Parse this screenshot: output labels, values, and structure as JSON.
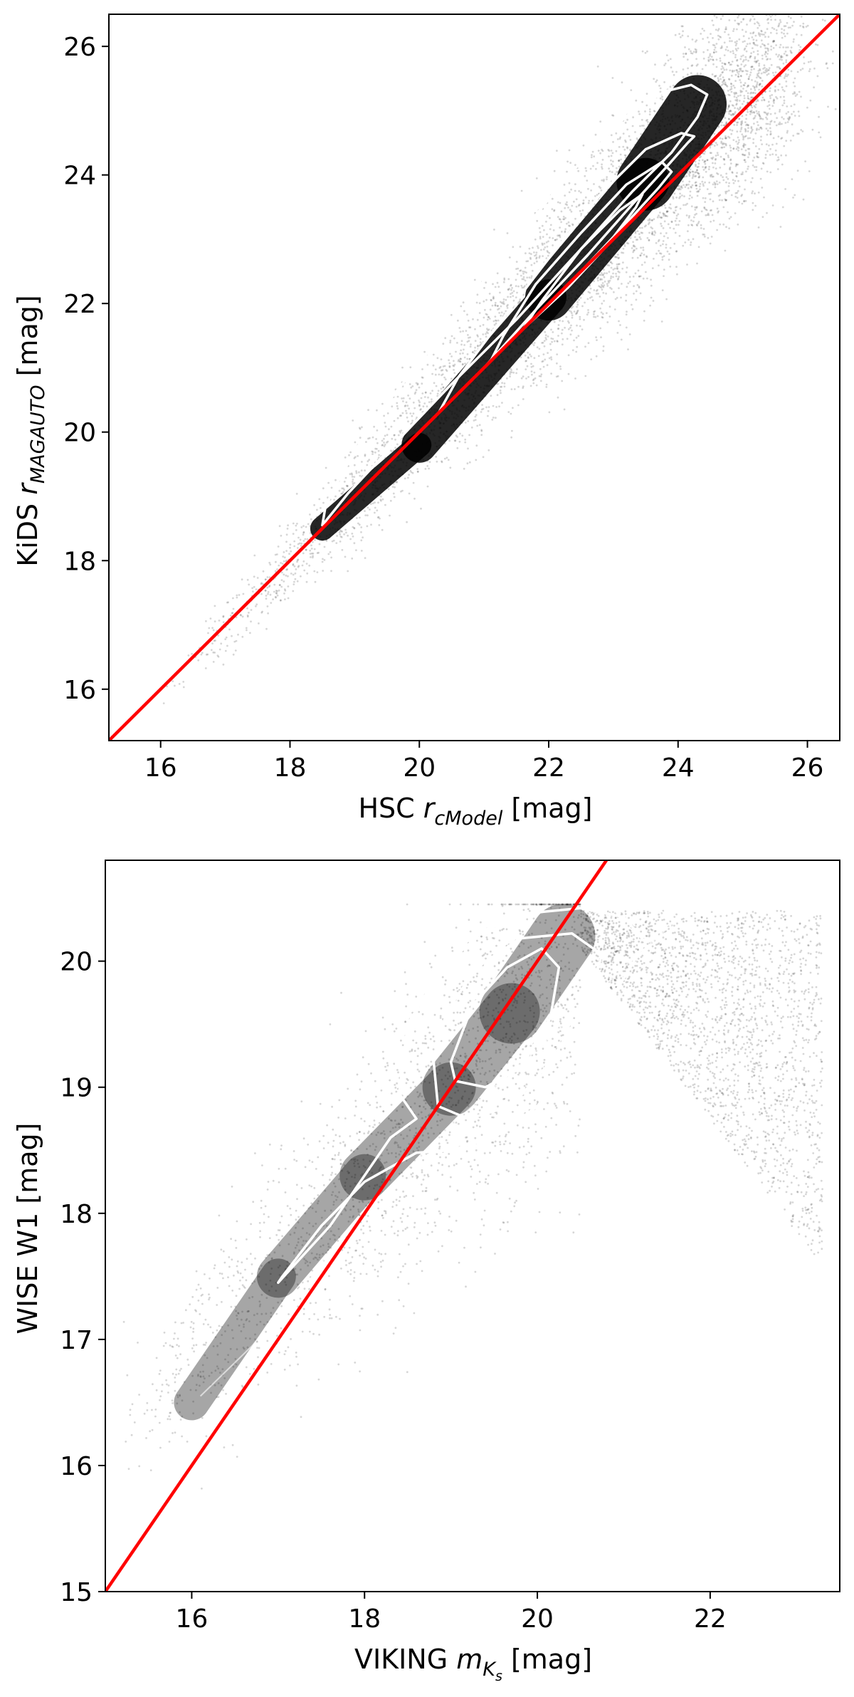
{
  "chart_data": [
    {
      "type": "scatter",
      "xlabel_parts": [
        "HSC ",
        "r",
        "cModel",
        " [mag]"
      ],
      "ylabel_parts": [
        "KiDS ",
        "r",
        "MAGAUTO",
        " [mag]"
      ],
      "xlim": [
        15.2,
        26.5
      ],
      "ylim": [
        15.2,
        26.5
      ],
      "xticks": [
        16,
        18,
        20,
        22,
        24,
        26
      ],
      "yticks": [
        16,
        18,
        20,
        22,
        24,
        26
      ],
      "scatter_color": "#000000",
      "density_core": [
        [
          18.5,
          18.5
        ],
        [
          20.0,
          19.8
        ],
        [
          22.0,
          22.1
        ],
        [
          23.5,
          23.9
        ],
        [
          24.3,
          25.1
        ]
      ],
      "contour_color": "#ffffff",
      "contours": [
        [
          [
            18.5,
            18.55
          ],
          [
            18.9,
            19.05
          ],
          [
            19.6,
            19.8
          ],
          [
            20.5,
            20.75
          ],
          [
            21.5,
            21.75
          ],
          [
            22.5,
            22.85
          ],
          [
            23.3,
            23.75
          ],
          [
            23.9,
            24.35
          ],
          [
            24.3,
            24.9
          ],
          [
            24.45,
            25.25
          ],
          [
            24.2,
            25.4
          ],
          [
            23.8,
            25.3
          ],
          [
            23.3,
            25.0
          ],
          [
            22.8,
            24.55
          ],
          [
            22.1,
            23.75
          ],
          [
            21.3,
            22.75
          ],
          [
            20.3,
            21.45
          ],
          [
            19.3,
            20.2
          ],
          [
            18.8,
            19.35
          ],
          [
            18.55,
            18.85
          ],
          [
            18.5,
            18.55
          ]
        ],
        [
          [
            20.3,
            20.3
          ],
          [
            21.0,
            21.0
          ],
          [
            21.8,
            21.9
          ],
          [
            22.6,
            22.75
          ],
          [
            23.3,
            23.55
          ],
          [
            23.8,
            24.1
          ],
          [
            24.15,
            24.5
          ],
          [
            24.25,
            24.6
          ],
          [
            24.05,
            24.65
          ],
          [
            23.5,
            24.4
          ],
          [
            22.8,
            23.7
          ],
          [
            22.0,
            22.7
          ],
          [
            21.2,
            21.65
          ],
          [
            20.6,
            20.85
          ],
          [
            20.3,
            20.3
          ]
        ],
        [
          [
            21.1,
            21.1
          ],
          [
            21.8,
            21.8
          ],
          [
            22.5,
            22.5
          ],
          [
            23.2,
            23.25
          ],
          [
            23.7,
            23.8
          ],
          [
            23.9,
            24.05
          ],
          [
            23.75,
            24.2
          ],
          [
            23.2,
            23.85
          ],
          [
            22.5,
            23.1
          ],
          [
            21.8,
            22.3
          ],
          [
            21.3,
            21.5
          ],
          [
            21.1,
            21.1
          ]
        ],
        [
          [
            21.6,
            21.6
          ],
          [
            22.3,
            22.25
          ],
          [
            22.9,
            22.9
          ],
          [
            23.35,
            23.5
          ],
          [
            23.45,
            23.7
          ],
          [
            23.1,
            23.45
          ],
          [
            22.5,
            22.85
          ],
          [
            21.9,
            22.05
          ],
          [
            21.6,
            21.6
          ]
        ]
      ],
      "fit_line": {
        "points": [
          [
            15.2,
            15.2
          ],
          [
            26.5,
            26.5
          ]
        ],
        "color": "#ff0000"
      }
    },
    {
      "type": "scatter",
      "xlabel_parts": [
        "VIKING ",
        "m",
        "K",
        "s",
        " [mag]"
      ],
      "ylabel_parts": [
        "WISE W1 [mag]"
      ],
      "xlim": [
        15.0,
        23.5
      ],
      "ylim": [
        15.0,
        20.8
      ],
      "xticks": [
        16,
        18,
        20,
        22
      ],
      "yticks": [
        15,
        16,
        17,
        18,
        19,
        20
      ],
      "scatter_color": "#000000",
      "density_core": [
        [
          16.0,
          16.5
        ],
        [
          17.0,
          17.5
        ],
        [
          18.0,
          18.3
        ],
        [
          19.0,
          19.0
        ],
        [
          19.7,
          19.6
        ],
        [
          20.3,
          20.2
        ]
      ],
      "contour_color": "#ffffff",
      "contours": [
        [
          [
            17.0,
            17.45
          ],
          [
            17.6,
            17.9
          ],
          [
            18.3,
            18.6
          ],
          [
            18.6,
            18.75
          ],
          [
            18.4,
            18.95
          ],
          [
            18.5,
            19.5
          ],
          [
            18.9,
            19.95
          ],
          [
            19.4,
            20.25
          ],
          [
            19.9,
            20.38
          ],
          [
            20.5,
            20.42
          ],
          [
            21.0,
            20.35
          ],
          [
            21.25,
            20.15
          ],
          [
            20.9,
            19.75
          ],
          [
            20.5,
            19.3
          ],
          [
            20.0,
            18.85
          ],
          [
            19.5,
            18.6
          ],
          [
            19.0,
            18.5
          ],
          [
            18.6,
            18.48
          ],
          [
            18.0,
            18.25
          ],
          [
            17.5,
            17.9
          ],
          [
            17.05,
            17.5
          ],
          [
            17.0,
            17.45
          ]
        ],
        [
          [
            18.8,
            19.2
          ],
          [
            18.95,
            19.6
          ],
          [
            19.3,
            19.95
          ],
          [
            19.8,
            20.18
          ],
          [
            20.4,
            20.22
          ],
          [
            20.75,
            20.05
          ],
          [
            20.55,
            19.65
          ],
          [
            20.15,
            19.2
          ],
          [
            19.7,
            18.85
          ],
          [
            19.2,
            18.75
          ],
          [
            18.85,
            18.85
          ],
          [
            18.8,
            19.2
          ]
        ],
        [
          [
            19.0,
            19.2
          ],
          [
            19.25,
            19.65
          ],
          [
            19.65,
            19.95
          ],
          [
            20.05,
            20.1
          ],
          [
            20.25,
            19.95
          ],
          [
            20.15,
            19.55
          ],
          [
            19.8,
            19.15
          ],
          [
            19.4,
            19.0
          ],
          [
            19.05,
            19.05
          ],
          [
            19.0,
            19.2
          ]
        ]
      ],
      "faint_contour": [
        [
          16.1,
          16.55
        ],
        [
          16.7,
          16.95
        ],
        [
          17.3,
          17.45
        ],
        [
          18.0,
          18.0
        ],
        [
          19.0,
          18.7
        ],
        [
          20.0,
          19.3
        ],
        [
          21.0,
          19.95
        ],
        [
          21.65,
          20.35
        ],
        [
          21.4,
          20.4
        ]
      ],
      "fit_line": {
        "points": [
          [
            15.0,
            15.0
          ],
          [
            20.8,
            20.8
          ]
        ],
        "color": "#ff0000"
      }
    }
  ]
}
